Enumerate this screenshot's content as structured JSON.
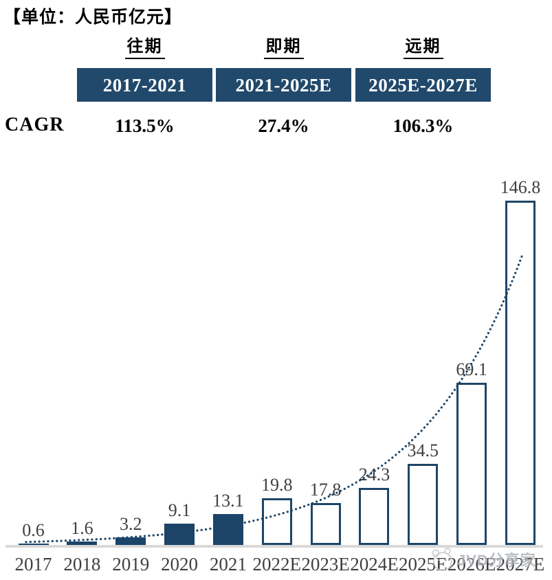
{
  "title": "【单位：人民币亿元】",
  "cagr_table": {
    "row_label": "CAGR",
    "columns": [
      {
        "phase": "往期",
        "period": "2017-2021",
        "cagr": "113.5%"
      },
      {
        "phase": "即期",
        "period": "2021-2025E",
        "cagr": "27.4%"
      },
      {
        "phase": "远期",
        "period": "2025E-2027E",
        "cagr": "106.3%"
      }
    ]
  },
  "chart_data": {
    "type": "bar",
    "title": "",
    "unit_label": "人民币亿元",
    "categories": [
      "2017",
      "2018",
      "2019",
      "2020",
      "2021",
      "2022E",
      "2023E",
      "2024E",
      "2025E",
      "2026E",
      "2027E"
    ],
    "values": [
      0.6,
      1.6,
      3.2,
      9.1,
      13.1,
      19.8,
      17.8,
      24.3,
      34.5,
      69.1,
      146.8
    ],
    "bar_styles": [
      "filled",
      "filled",
      "filled",
      "filled",
      "filled",
      "outlined",
      "outlined",
      "outlined",
      "outlined",
      "outlined",
      "outlined"
    ],
    "data_labels": [
      "0.6",
      "1.6",
      "3.2",
      "9.1",
      "13.1",
      "19.8",
      "17.8",
      "24.3",
      "34.5",
      "69.1",
      "146.8"
    ],
    "xlabel": "",
    "ylabel": "",
    "ylim": [
      0,
      150
    ],
    "grid": false,
    "legend_position": "none",
    "trendline": {
      "style": "dotted",
      "shape": "exponential"
    },
    "colors": {
      "bar_fill": "#1c4368",
      "bar_outline": "#1e4567",
      "header_box": "#21496b",
      "trendline": "#1e4567",
      "value_label": "#3f3f3f",
      "axis_line": "#d9d9d9"
    }
  },
  "watermark": {
    "text": "JVD分享家",
    "icon": "panda-face-logo"
  }
}
